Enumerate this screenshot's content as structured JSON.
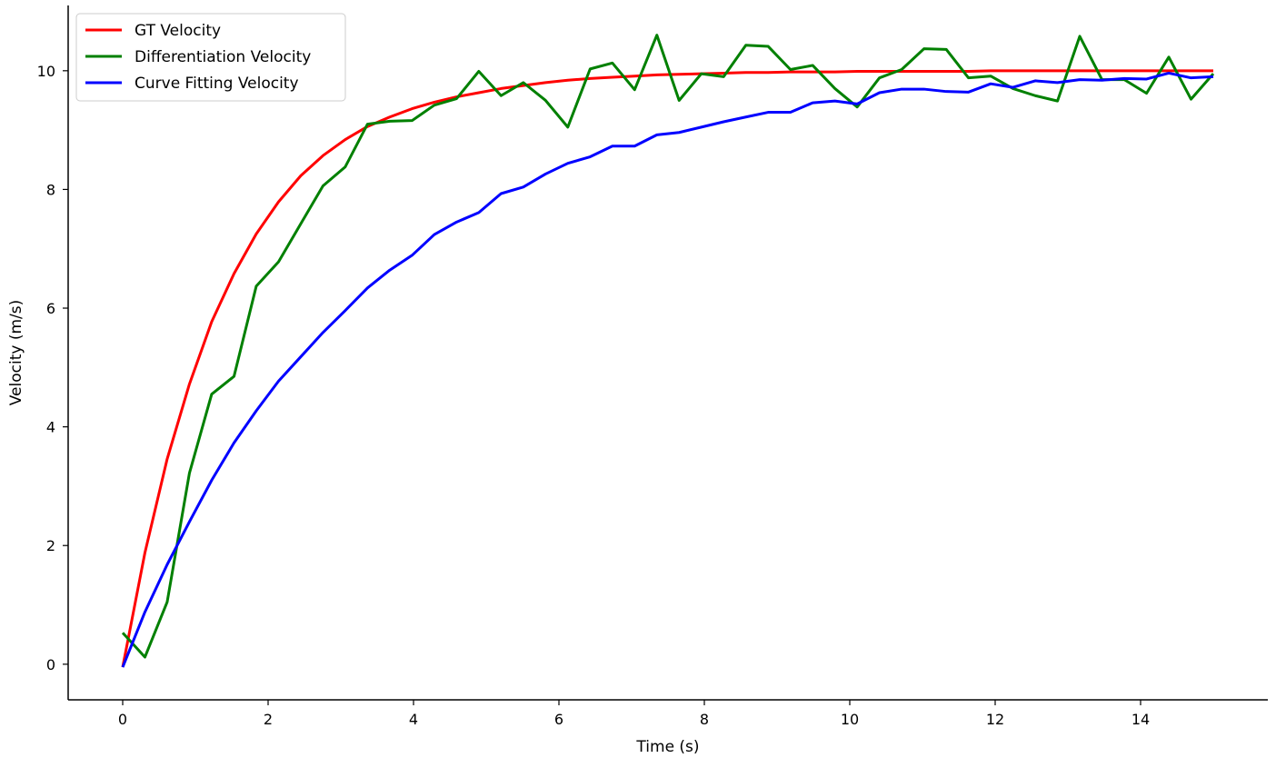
{
  "chart_data": {
    "type": "line",
    "title": "",
    "xlabel": "Time (s)",
    "ylabel": "Velocity (m/s)",
    "xlim": [
      -0.75,
      15.75
    ],
    "ylim": [
      -0.6,
      11.1
    ],
    "xticks": [
      0,
      2,
      4,
      6,
      8,
      10,
      12,
      14
    ],
    "yticks": [
      0,
      2,
      4,
      6,
      8,
      10
    ],
    "grid": false,
    "legend_position": "top-left",
    "x": [
      0,
      0.306,
      0.612,
      0.918,
      1.224,
      1.531,
      1.837,
      2.143,
      2.449,
      2.755,
      3.061,
      3.367,
      3.673,
      3.98,
      4.286,
      4.592,
      4.898,
      5.204,
      5.51,
      5.816,
      6.122,
      6.429,
      6.735,
      7.041,
      7.347,
      7.653,
      7.959,
      8.265,
      8.571,
      8.878,
      9.184,
      9.49,
      9.796,
      10.102,
      10.408,
      10.714,
      11.02,
      11.327,
      11.633,
      11.939,
      12.245,
      12.551,
      12.857,
      13.163,
      13.469,
      13.776,
      14.082,
      14.388,
      14.694,
      15.0
    ],
    "series": [
      {
        "name": "GT Velocity",
        "color": "#ff0000",
        "values": [
          -0.05,
          1.88,
          3.46,
          4.72,
          5.77,
          6.58,
          7.25,
          7.79,
          8.23,
          8.57,
          8.84,
          9.06,
          9.22,
          9.36,
          9.47,
          9.56,
          9.63,
          9.7,
          9.75,
          9.8,
          9.84,
          9.87,
          9.89,
          9.91,
          9.93,
          9.94,
          9.95,
          9.96,
          9.97,
          9.97,
          9.98,
          9.98,
          9.98,
          9.99,
          9.99,
          9.99,
          9.99,
          9.99,
          9.99,
          10.0,
          10.0,
          10.0,
          10.0,
          10.0,
          10.0,
          10.0,
          10.0,
          10.0,
          10.0,
          10.0
        ]
      },
      {
        "name": "Differentiation Velocity",
        "color": "#008000",
        "values": [
          0.53,
          0.12,
          1.05,
          3.22,
          4.55,
          4.85,
          6.37,
          6.78,
          7.42,
          8.06,
          8.38,
          9.1,
          9.15,
          9.16,
          9.42,
          9.53,
          9.99,
          9.58,
          9.8,
          9.5,
          9.05,
          10.03,
          10.13,
          9.68,
          10.6,
          9.5,
          9.95,
          9.9,
          10.43,
          10.41,
          10.02,
          10.09,
          9.7,
          9.39,
          9.88,
          10.02,
          10.37,
          10.36,
          9.88,
          9.91,
          9.7,
          9.58,
          9.49,
          10.58,
          9.85,
          9.85,
          9.62,
          10.23,
          9.52,
          9.95
        ]
      },
      {
        "name": "Curve Fitting Velocity",
        "color": "#0000ff",
        "values": [
          -0.05,
          0.88,
          1.68,
          2.4,
          3.1,
          3.73,
          4.27,
          4.77,
          5.18,
          5.59,
          5.96,
          6.34,
          6.64,
          6.89,
          7.24,
          7.45,
          7.61,
          7.93,
          8.04,
          8.26,
          8.44,
          8.55,
          8.73,
          8.73,
          8.92,
          8.96,
          9.05,
          9.14,
          9.22,
          9.3,
          9.3,
          9.46,
          9.49,
          9.44,
          9.63,
          9.69,
          9.69,
          9.65,
          9.64,
          9.78,
          9.72,
          9.83,
          9.8,
          9.85,
          9.84,
          9.87,
          9.86,
          9.96,
          9.88,
          9.9
        ]
      }
    ]
  }
}
